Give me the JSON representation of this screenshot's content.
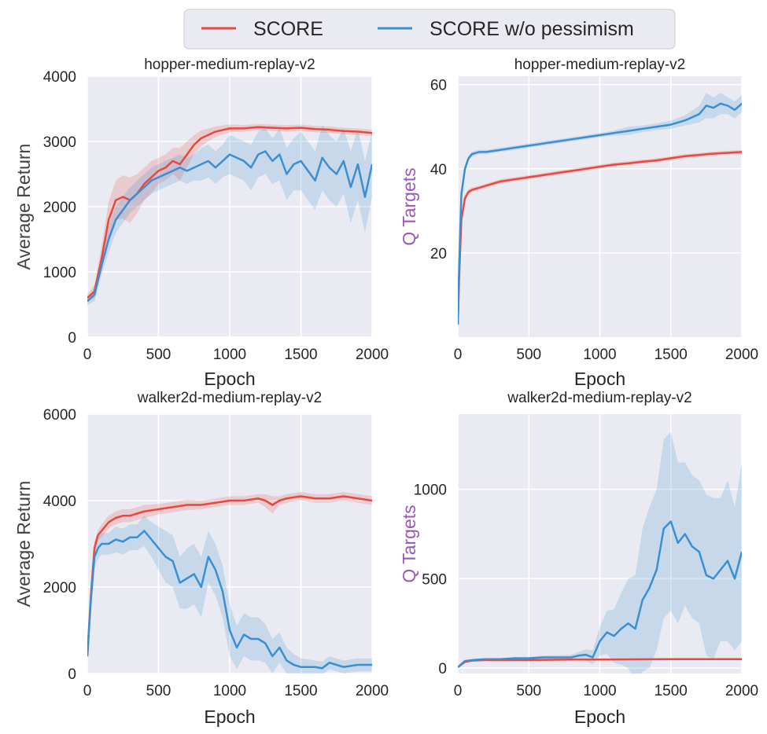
{
  "legend": {
    "entries": [
      {
        "label": "SCORE",
        "color": "#e8493f"
      },
      {
        "label": "SCORE w/o pessimism",
        "color": "#3a8fd3"
      }
    ]
  },
  "colors": {
    "score": "#e8493f",
    "nopess": "#3a8fd3",
    "panel_bg": "#eaeaf2",
    "grid": "#ffffff",
    "qlabel": "#9b59b6",
    "textlabel": "#404040"
  },
  "chart_data": [
    {
      "type": "line",
      "title": "hopper-medium-replay-v2",
      "xlabel": "Epoch",
      "ylabel": "Average Return",
      "ylabel_color": "#404040",
      "xlim": [
        0,
        2000
      ],
      "ylim": [
        0,
        4000
      ],
      "xticks": [
        0,
        500,
        1000,
        1500,
        2000
      ],
      "yticks": [
        0,
        1000,
        2000,
        3000,
        4000
      ],
      "series": [
        {
          "name": "SCORE",
          "x": [
            0,
            50,
            100,
            150,
            200,
            250,
            300,
            350,
            400,
            450,
            500,
            550,
            600,
            650,
            700,
            750,
            800,
            900,
            1000,
            1100,
            1200,
            1300,
            1400,
            1500,
            1600,
            1700,
            1800,
            1900,
            2000
          ],
          "y": [
            600,
            700,
            1200,
            1800,
            2100,
            2150,
            2100,
            2200,
            2350,
            2450,
            2550,
            2600,
            2700,
            2650,
            2800,
            2950,
            3050,
            3150,
            3200,
            3200,
            3220,
            3210,
            3200,
            3210,
            3190,
            3180,
            3160,
            3150,
            3130
          ],
          "band": [
            60,
            100,
            200,
            280,
            300,
            330,
            350,
            300,
            250,
            250,
            200,
            200,
            200,
            250,
            200,
            150,
            120,
            80,
            60,
            50,
            50,
            50,
            50,
            50,
            50,
            50,
            50,
            50,
            50
          ]
        },
        {
          "name": "SCORE w/o pessimism",
          "x": [
            0,
            50,
            100,
            150,
            200,
            250,
            300,
            350,
            400,
            450,
            500,
            550,
            600,
            650,
            700,
            750,
            800,
            850,
            900,
            950,
            1000,
            1050,
            1100,
            1150,
            1200,
            1250,
            1300,
            1350,
            1400,
            1450,
            1500,
            1550,
            1600,
            1650,
            1700,
            1750,
            1800,
            1850,
            1900,
            1950,
            2000
          ],
          "y": [
            550,
            650,
            1100,
            1500,
            1800,
            1950,
            2100,
            2200,
            2300,
            2400,
            2450,
            2500,
            2550,
            2600,
            2550,
            2600,
            2650,
            2700,
            2600,
            2700,
            2800,
            2750,
            2700,
            2600,
            2800,
            2850,
            2700,
            2800,
            2500,
            2650,
            2700,
            2550,
            2400,
            2750,
            2600,
            2500,
            2700,
            2300,
            2650,
            2150,
            2650
          ],
          "band": [
            60,
            100,
            150,
            200,
            200,
            200,
            200,
            200,
            200,
            200,
            200,
            200,
            200,
            200,
            200,
            200,
            250,
            250,
            250,
            250,
            300,
            300,
            300,
            350,
            350,
            350,
            350,
            400,
            400,
            400,
            450,
            450,
            450,
            500,
            500,
            500,
            500,
            550,
            550,
            550,
            500
          ]
        }
      ]
    },
    {
      "type": "line",
      "title": "hopper-medium-replay-v2",
      "xlabel": "Epoch",
      "ylabel": "Q Targets",
      "ylabel_color": "#9b59b6",
      "xlim": [
        0,
        2000
      ],
      "ylim": [
        0,
        62
      ],
      "xticks": [
        0,
        500,
        1000,
        1500,
        2000
      ],
      "yticks": [
        20,
        40,
        60
      ],
      "series": [
        {
          "name": "SCORE",
          "x": [
            0,
            10,
            25,
            50,
            75,
            100,
            150,
            200,
            300,
            400,
            500,
            600,
            700,
            800,
            900,
            1000,
            1100,
            1200,
            1300,
            1400,
            1500,
            1600,
            1700,
            1800,
            1900,
            2000
          ],
          "y": [
            3,
            15,
            28,
            33,
            34.5,
            35,
            35.5,
            36,
            37,
            37.5,
            38,
            38.5,
            39,
            39.5,
            40,
            40.5,
            41,
            41.3,
            41.7,
            42,
            42.5,
            43,
            43.3,
            43.6,
            43.8,
            44
          ],
          "band": [
            0.5,
            1,
            1,
            0.8,
            0.6,
            0.6,
            0.5,
            0.5,
            0.5,
            0.5,
            0.5,
            0.5,
            0.5,
            0.5,
            0.5,
            0.5,
            0.5,
            0.5,
            0.5,
            0.5,
            0.5,
            0.5,
            0.5,
            0.5,
            0.5,
            0.5
          ]
        },
        {
          "name": "SCORE w/o pessimism",
          "x": [
            0,
            10,
            25,
            50,
            75,
            100,
            150,
            200,
            300,
            400,
            500,
            600,
            700,
            800,
            900,
            1000,
            1100,
            1200,
            1300,
            1400,
            1500,
            1600,
            1700,
            1750,
            1800,
            1850,
            1900,
            1950,
            2000
          ],
          "y": [
            3,
            18,
            34,
            40,
            42.5,
            43.5,
            44,
            44,
            44.5,
            45,
            45.5,
            46,
            46.5,
            47,
            47.5,
            48,
            48.5,
            49,
            49.5,
            50,
            50.5,
            51.5,
            53,
            55,
            54.5,
            55.5,
            55,
            54,
            55.5
          ],
          "band": [
            0.5,
            1,
            1,
            0.8,
            0.6,
            0.6,
            0.5,
            0.5,
            0.5,
            0.5,
            0.5,
            0.5,
            0.5,
            0.5,
            0.5,
            0.5,
            0.6,
            1,
            0.8,
            0.8,
            1,
            1.2,
            2,
            3,
            2.5,
            2.5,
            2,
            2,
            2
          ]
        }
      ]
    },
    {
      "type": "line",
      "title": "walker2d-medium-replay-v2",
      "xlabel": "Epoch",
      "ylabel": "Average Return",
      "ylabel_color": "#404040",
      "xlim": [
        0,
        2000
      ],
      "ylim": [
        0,
        6000
      ],
      "xticks": [
        0,
        500,
        1000,
        1500,
        2000
      ],
      "yticks": [
        0,
        2000,
        4000,
        6000
      ],
      "series": [
        {
          "name": "SCORE",
          "x": [
            0,
            25,
            50,
            75,
            100,
            150,
            200,
            250,
            300,
            400,
            500,
            600,
            700,
            800,
            900,
            1000,
            1100,
            1200,
            1250,
            1300,
            1350,
            1400,
            1500,
            1600,
            1700,
            1800,
            1900,
            2000
          ],
          "y": [
            400,
            1800,
            2900,
            3200,
            3300,
            3500,
            3600,
            3650,
            3650,
            3750,
            3800,
            3850,
            3900,
            3900,
            3950,
            4000,
            4000,
            4050,
            4000,
            3900,
            4000,
            4050,
            4100,
            4050,
            4050,
            4100,
            4050,
            4000
          ],
          "band": [
            60,
            150,
            150,
            120,
            150,
            150,
            150,
            150,
            150,
            150,
            120,
            120,
            120,
            100,
            100,
            100,
            100,
            100,
            150,
            200,
            100,
            100,
            100,
            100,
            100,
            100,
            100,
            100
          ]
        },
        {
          "name": "SCORE w/o pessimism",
          "x": [
            0,
            25,
            50,
            75,
            100,
            150,
            200,
            250,
            300,
            350,
            400,
            450,
            500,
            550,
            600,
            650,
            700,
            750,
            800,
            850,
            900,
            950,
            1000,
            1050,
            1100,
            1150,
            1200,
            1250,
            1300,
            1350,
            1400,
            1450,
            1500,
            1600,
            1650,
            1700,
            1800,
            1900,
            2000
          ],
          "y": [
            400,
            1700,
            2700,
            2900,
            3000,
            3000,
            3100,
            3050,
            3150,
            3150,
            3300,
            3100,
            2900,
            2700,
            2600,
            2100,
            2200,
            2300,
            2000,
            2700,
            2400,
            1900,
            1000,
            600,
            900,
            800,
            800,
            700,
            400,
            600,
            300,
            200,
            150,
            150,
            120,
            250,
            150,
            200,
            200
          ],
          "band": [
            80,
            200,
            250,
            250,
            250,
            250,
            300,
            300,
            300,
            300,
            350,
            400,
            500,
            600,
            600,
            600,
            700,
            700,
            700,
            600,
            600,
            600,
            600,
            500,
            500,
            500,
            500,
            450,
            400,
            350,
            300,
            250,
            200,
            150,
            150,
            150,
            150,
            150,
            150
          ]
        }
      ]
    },
    {
      "type": "line",
      "title": "walker2d-medium-replay-v2",
      "xlabel": "Epoch",
      "ylabel": "Q Targets",
      "ylabel_color": "#9b59b6",
      "xlim": [
        0,
        2000
      ],
      "ylim": [
        -30,
        1420
      ],
      "xticks": [
        0,
        500,
        1000,
        1500,
        2000
      ],
      "yticks": [
        0,
        500,
        1000
      ],
      "series": [
        {
          "name": "SCORE",
          "x": [
            0,
            50,
            100,
            200,
            300,
            500,
            800,
            1000,
            1500,
            2000
          ],
          "y": [
            5,
            35,
            42,
            45,
            45,
            45,
            48,
            48,
            50,
            50
          ],
          "band": [
            3,
            5,
            5,
            5,
            5,
            5,
            5,
            5,
            5,
            5
          ]
        },
        {
          "name": "SCORE w/o pessimism",
          "x": [
            0,
            50,
            100,
            200,
            300,
            400,
            500,
            600,
            700,
            800,
            850,
            900,
            950,
            1000,
            1050,
            1100,
            1150,
            1200,
            1250,
            1300,
            1350,
            1400,
            1450,
            1500,
            1550,
            1600,
            1650,
            1700,
            1750,
            1800,
            1850,
            1900,
            1950,
            2000
          ],
          "y": [
            5,
            40,
            45,
            50,
            50,
            55,
            55,
            60,
            60,
            60,
            70,
            75,
            60,
            150,
            200,
            180,
            220,
            250,
            220,
            380,
            450,
            550,
            780,
            820,
            700,
            750,
            680,
            650,
            520,
            500,
            550,
            600,
            500,
            650
          ],
          "band": [
            3,
            5,
            5,
            5,
            5,
            8,
            8,
            10,
            12,
            15,
            20,
            30,
            40,
            80,
            120,
            150,
            200,
            250,
            300,
            400,
            450,
            450,
            500,
            500,
            450,
            400,
            400,
            400,
            450,
            450,
            400,
            450,
            400,
            500
          ]
        }
      ]
    }
  ]
}
